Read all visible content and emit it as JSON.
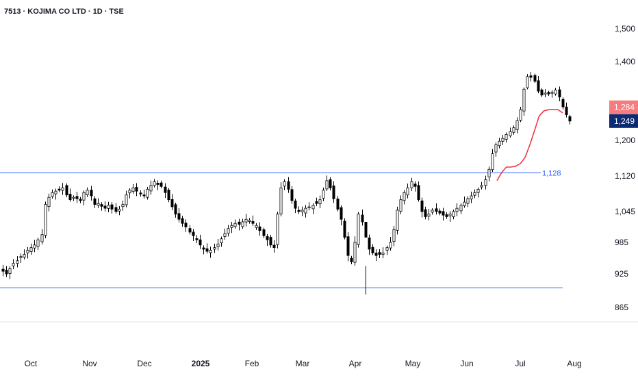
{
  "header": {
    "title": "7513 · KOJIMA CO LTD · 1D · TSE"
  },
  "colors": {
    "candle_up_fill": "#ffffff",
    "candle_down_fill": "#000000",
    "candle_stroke": "#000000",
    "line_red": "#f23645",
    "hline_blue": "#2962ff",
    "price_badge_red": "#f77c80",
    "price_badge_navy": "#0d2b73",
    "axis_text": "#131722",
    "separator": "#e0e3eb"
  },
  "chart_data": {
    "type": "candlestick",
    "title": "7513 · KOJIMA CO LTD · 1D · TSE",
    "y_ticks": [
      "1,500",
      "1,400",
      "1,200",
      "1,120",
      "1,045",
      "985",
      "925",
      "865"
    ],
    "y_tick_values": [
      1500,
      1400,
      1200,
      1120,
      1045,
      985,
      925,
      865
    ],
    "x_ticks": [
      "Oct",
      "Nov",
      "Dec",
      "2025",
      "Feb",
      "Mar",
      "Apr",
      "May",
      "Jun",
      "Jul",
      "Aug"
    ],
    "horizontal_lines": [
      {
        "price": 1128,
        "label": "1,128"
      },
      {
        "price": 900,
        "label": ""
      }
    ],
    "last_price_labels": [
      {
        "text": "1,284",
        "value": 1284,
        "color": "red"
      },
      {
        "text": "1,249",
        "value": 1249,
        "color": "navy"
      }
    ],
    "trailing_line": [
      1110,
      1128,
      1140,
      1140,
      1142,
      1148,
      1162,
      1190,
      1225,
      1262,
      1275,
      1278,
      1278,
      1278,
      1270
    ],
    "trend_closes": [
      930,
      925,
      935,
      945,
      950,
      958,
      962,
      970,
      975,
      980,
      990,
      1000,
      1060,
      1075,
      1085,
      1088,
      1090,
      1095,
      1080,
      1070,
      1075,
      1072,
      1068,
      1085,
      1090,
      1078,
      1060,
      1062,
      1056,
      1052,
      1058,
      1050,
      1045,
      1050,
      1060,
      1080,
      1090,
      1095,
      1088,
      1082,
      1078,
      1092,
      1100,
      1108,
      1102,
      1098,
      1085,
      1070,
      1055,
      1040,
      1030,
      1022,
      1015,
      1005,
      998,
      990,
      980,
      972,
      968,
      970,
      975,
      982,
      992,
      1002,
      1012,
      1018,
      1022,
      1020,
      1025,
      1030,
      1028,
      1022,
      1018,
      1008,
      998,
      990,
      980,
      975,
      1040,
      1095,
      1108,
      1092,
      1068,
      1052,
      1045,
      1048,
      1052,
      1055,
      1058,
      1062,
      1070,
      1090,
      1110,
      1095,
      1072,
      1050,
      1030,
      995,
      960,
      948,
      985,
      1040,
      1025,
      995,
      972,
      965,
      960,
      962,
      965,
      975,
      985,
      1010,
      1048,
      1070,
      1085,
      1095,
      1108,
      1098,
      1070,
      1045,
      1035,
      1040,
      1048,
      1045,
      1042,
      1038,
      1035,
      1040,
      1045,
      1052,
      1058,
      1065,
      1072,
      1078,
      1085,
      1092,
      1100,
      1112,
      1135,
      1170,
      1190,
      1198,
      1205,
      1215,
      1222,
      1232,
      1250,
      1278,
      1330,
      1362,
      1360,
      1350,
      1325,
      1315,
      1320,
      1318,
      1322,
      1328,
      1310,
      1285,
      1265,
      1249
    ]
  }
}
